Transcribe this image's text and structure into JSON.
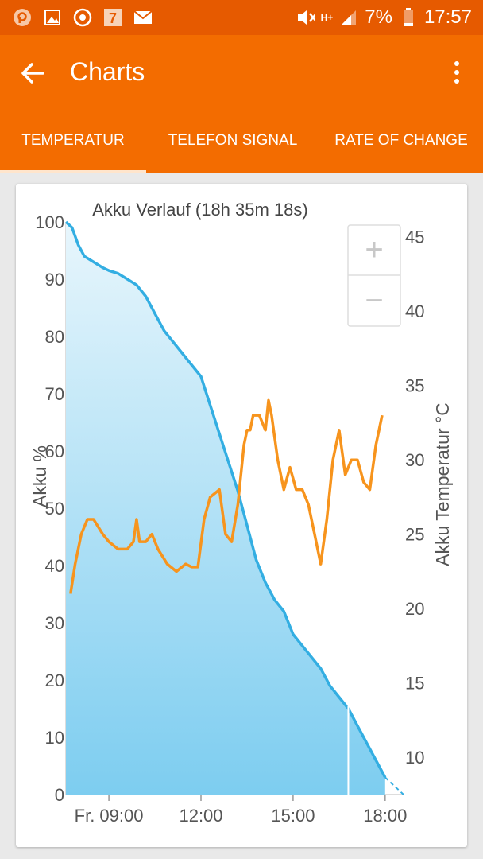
{
  "status_bar": {
    "battery_percent": "7%",
    "time": "17:57",
    "network": "H+",
    "icons": [
      "picsart-icon",
      "gallery-icon",
      "vodafone-icon",
      "calendar-7-icon",
      "mail-icon",
      "mute-icon",
      "signal-icon",
      "battery-icon"
    ]
  },
  "app_bar": {
    "title": "Charts",
    "back_icon": "arrow-left-icon",
    "menu_icon": "more-vert-icon"
  },
  "tabs": [
    {
      "label": "TEMPERATUR",
      "selected": true
    },
    {
      "label": "TELEFON SIGNAL",
      "selected": false
    },
    {
      "label": "RATE OF CHANGE",
      "selected": false
    }
  ],
  "zoom": {
    "plus": "+",
    "minus": "−"
  },
  "chart_data": {
    "type": "area",
    "title": "Akku Verlauf (18h 35m 18s)",
    "x_ticks": [
      "Fr. 09:00",
      "12:00",
      "15:00",
      "18:00"
    ],
    "x_tick_hours": [
      9,
      12,
      15,
      18
    ],
    "x_range_hours": [
      7.6,
      18.6
    ],
    "left_axis": {
      "label": "Akku %",
      "range": [
        0,
        100
      ],
      "ticks": [
        0,
        10,
        20,
        30,
        40,
        50,
        60,
        70,
        80,
        90,
        100
      ]
    },
    "right_axis": {
      "label": "Akku Temperatur °C",
      "range": [
        7.5,
        46
      ],
      "ticks": [
        10,
        15,
        20,
        25,
        30,
        35,
        40,
        45
      ]
    },
    "colors": {
      "battery_line": "#33aee2",
      "temperature_line": "#f7941d",
      "area_top": "#e8f6fc",
      "area_bottom": "#7dcdf0",
      "marker": "#ffffff"
    },
    "series": [
      {
        "name": "Akku %",
        "axis": "left",
        "x": [
          7.6,
          7.8,
          8.0,
          8.2,
          8.5,
          8.8,
          9.0,
          9.3,
          9.6,
          9.9,
          10.2,
          10.5,
          10.8,
          11.1,
          11.4,
          11.7,
          12.0,
          12.3,
          12.6,
          12.9,
          13.2,
          13.5,
          13.8,
          14.1,
          14.4,
          14.7,
          15.0,
          15.3,
          15.6,
          15.9,
          16.2,
          16.5,
          16.8,
          17.1,
          17.4,
          17.7,
          18.0
        ],
        "values": [
          100,
          99,
          96,
          94,
          93,
          92,
          91.5,
          91,
          90,
          89,
          87,
          84,
          81,
          79,
          77,
          75,
          73,
          68,
          63,
          58,
          53,
          47,
          41,
          37,
          34,
          32,
          28,
          26,
          24,
          22,
          19,
          17,
          15,
          12,
          9,
          6,
          3
        ]
      },
      {
        "name": "Akku Temperatur °C",
        "axis": "right",
        "x": [
          7.75,
          7.9,
          8.1,
          8.3,
          8.5,
          8.8,
          9.0,
          9.3,
          9.6,
          9.8,
          9.9,
          10.0,
          10.2,
          10.4,
          10.6,
          10.9,
          11.2,
          11.5,
          11.7,
          11.9,
          12.1,
          12.3,
          12.6,
          12.8,
          13.0,
          13.2,
          13.4,
          13.5,
          13.6,
          13.7,
          13.9,
          14.1,
          14.2,
          14.3,
          14.5,
          14.7,
          14.9,
          15.1,
          15.3,
          15.5,
          15.7,
          15.9,
          16.1,
          16.3,
          16.5,
          16.7,
          16.9,
          17.1,
          17.3,
          17.5,
          17.7,
          17.9
        ],
        "values": [
          21,
          23,
          25,
          26,
          26,
          25,
          24.5,
          24,
          24,
          24.5,
          26,
          24.5,
          24.5,
          25,
          24,
          23,
          22.5,
          23,
          22.8,
          22.8,
          26,
          27.5,
          28,
          25,
          24.5,
          27,
          31,
          32,
          32,
          33,
          33,
          32,
          34,
          33,
          30,
          28,
          29.5,
          28,
          28,
          27,
          25,
          23,
          26,
          30,
          32,
          29,
          30,
          30,
          28.5,
          28,
          31,
          33
        ]
      }
    ]
  }
}
